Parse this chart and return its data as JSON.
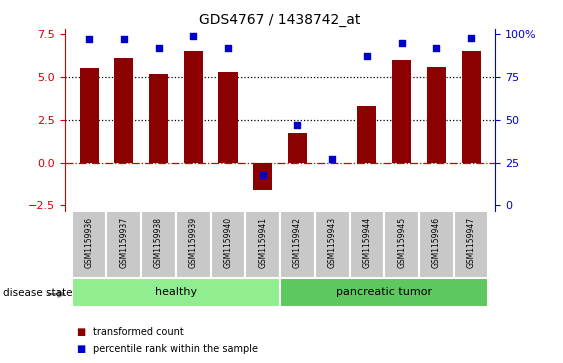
{
  "title": "GDS4767 / 1438742_at",
  "samples": [
    "GSM1159936",
    "GSM1159937",
    "GSM1159938",
    "GSM1159939",
    "GSM1159940",
    "GSM1159941",
    "GSM1159942",
    "GSM1159943",
    "GSM1159944",
    "GSM1159945",
    "GSM1159946",
    "GSM1159947"
  ],
  "transformed_count": [
    5.5,
    6.1,
    5.2,
    6.5,
    5.3,
    -1.6,
    1.7,
    -0.05,
    3.3,
    6.0,
    5.6,
    6.5
  ],
  "percentile_rank": [
    97,
    97,
    92,
    99,
    92,
    18,
    47,
    27,
    87,
    95,
    92,
    98
  ],
  "bar_color": "#8B0000",
  "dot_color": "#0000CC",
  "ylim_left": [
    -2.8,
    7.8
  ],
  "yticks_left": [
    -2.5,
    0.0,
    2.5,
    5.0,
    7.5
  ],
  "right_ticks_labels": [
    "0",
    "25",
    "50",
    "75",
    "100%"
  ],
  "right_ticks_values": [
    0,
    25,
    50,
    75,
    100
  ],
  "hlines": [
    2.5,
    5.0
  ],
  "zero_line_color": "#CC0000",
  "groups": [
    {
      "label": "healthy",
      "start": 0,
      "end": 6,
      "color": "#90EE90"
    },
    {
      "label": "pancreatic tumor",
      "start": 6,
      "end": 12,
      "color": "#5DC85D"
    }
  ],
  "disease_state_label": "disease state",
  "legend_items": [
    {
      "label": "transformed count",
      "color": "#8B0000"
    },
    {
      "label": "percentile rank within the sample",
      "color": "#0000CC"
    }
  ],
  "bar_width": 0.55,
  "left_axis_color": "#CC0000",
  "right_axis_color": "#0000CC",
  "sample_box_color": "#C8C8C8",
  "sample_box_edge": "#FFFFFF"
}
